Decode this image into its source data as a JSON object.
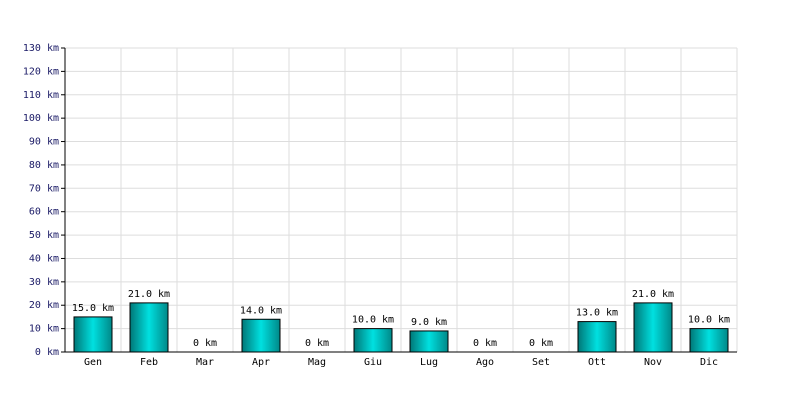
{
  "chart_data": {
    "type": "bar",
    "categories": [
      "Gen",
      "Feb",
      "Mar",
      "Apr",
      "Mag",
      "Giu",
      "Lug",
      "Ago",
      "Set",
      "Ott",
      "Nov",
      "Dic"
    ],
    "values": [
      15,
      21,
      0,
      14,
      0,
      10,
      9,
      0,
      0,
      13,
      21,
      10
    ],
    "value_labels": [
      "15.0 km",
      "21.0 km",
      "0 km",
      "14.0 km",
      "0 km",
      "10.0 km",
      "9.0 km",
      "0 km",
      "0 km",
      "13.0 km",
      "21.0 km",
      "10.0 km"
    ],
    "color": "#00e0e0",
    "ylim": [
      0,
      130
    ],
    "yticks": [
      {
        "value": 0,
        "label": "0 km"
      },
      {
        "value": 10,
        "label": "10 km"
      },
      {
        "value": 20,
        "label": "20 km"
      },
      {
        "value": 30,
        "label": "30 km"
      },
      {
        "value": 40,
        "label": "40 km"
      },
      {
        "value": 50,
        "label": "50 km"
      },
      {
        "value": 60,
        "label": "60 km"
      },
      {
        "value": 70,
        "label": "70 km"
      },
      {
        "value": 80,
        "label": "80 km"
      },
      {
        "value": 90,
        "label": "90 km"
      },
      {
        "value": 100,
        "label": "100 km"
      },
      {
        "value": 110,
        "label": "110 km"
      },
      {
        "value": 120,
        "label": "120 km"
      },
      {
        "value": 130,
        "label": "130 km"
      }
    ],
    "grid": true
  }
}
